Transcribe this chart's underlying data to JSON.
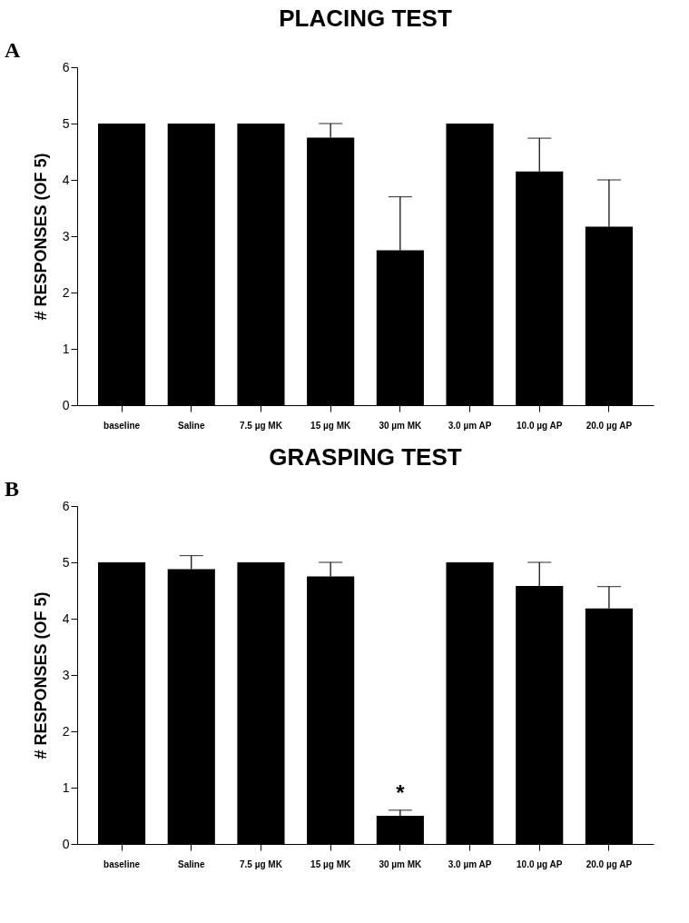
{
  "chart_data": [
    {
      "type": "bar",
      "title": "PLACING TEST",
      "ylabel": "# RESPONSES (OF 5)",
      "annotations": [
        "A"
      ],
      "categories": [
        "baseline",
        "Saline",
        "7.5 µg MK",
        "15 µg MK",
        "30 µm MK",
        "3.0 µm AP",
        "10.0 µg AP",
        "20.0 µg AP"
      ],
      "values": [
        5,
        5,
        5,
        4.75,
        2.75,
        5,
        4.15,
        3.17
      ],
      "errors": [
        null,
        null,
        null,
        [
          4.75,
          5
        ],
        [
          2.75,
          3.7
        ],
        null,
        [
          4.15,
          4.74
        ],
        [
          3.17,
          4.0
        ]
      ],
      "color": "#000000",
      "ylim": [
        0,
        6
      ],
      "yticks": [
        0,
        1,
        2,
        3,
        4,
        5,
        6
      ],
      "grid": false
    },
    {
      "type": "bar",
      "title": "GRASPING TEST",
      "ylabel": "# RESPONSES (OF 5)",
      "annotations": [
        "B",
        {
          "text": "*",
          "x": "30 µm MK",
          "y": 0.6
        }
      ],
      "categories": [
        "baseline",
        "Saline",
        "7.5 µg MK",
        "15 µg MK",
        "30 µm MK",
        "3.0 µm AP",
        "10.0 µg AP",
        "20.0 µg AP"
      ],
      "values": [
        5,
        4.88,
        5,
        4.75,
        0.5,
        5,
        4.58,
        4.18
      ],
      "errors": [
        null,
        [
          4.88,
          5.12
        ],
        null,
        [
          4.75,
          5
        ],
        [
          0.5,
          0.6
        ],
        null,
        [
          4.58,
          5
        ],
        [
          4.18,
          4.57
        ]
      ],
      "color": "#000000",
      "ylim": [
        0,
        6
      ],
      "yticks": [
        0,
        1,
        2,
        3,
        4,
        5,
        6
      ],
      "grid": false
    }
  ]
}
